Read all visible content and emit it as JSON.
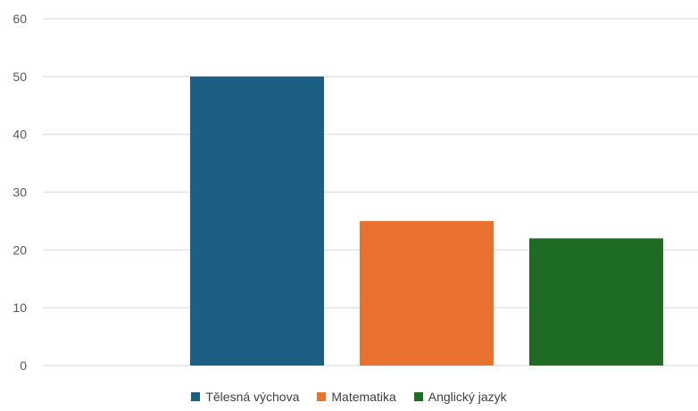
{
  "chart_data": {
    "type": "bar",
    "title": "",
    "xlabel": "",
    "ylabel": "",
    "categories": [
      ""
    ],
    "series": [
      {
        "name": "Tělesná výchova",
        "values": [
          50
        ],
        "color": "#1b5f84"
      },
      {
        "name": "Matematika",
        "values": [
          25
        ],
        "color": "#e87130"
      },
      {
        "name": "Anglický jazyk",
        "values": [
          22
        ],
        "color": "#1e6b23"
      }
    ],
    "ylim": [
      0,
      60
    ],
    "yticks": [
      "0",
      "10",
      "20",
      "30",
      "40",
      "50",
      "60"
    ],
    "grid": true,
    "legend_position": "bottom"
  }
}
